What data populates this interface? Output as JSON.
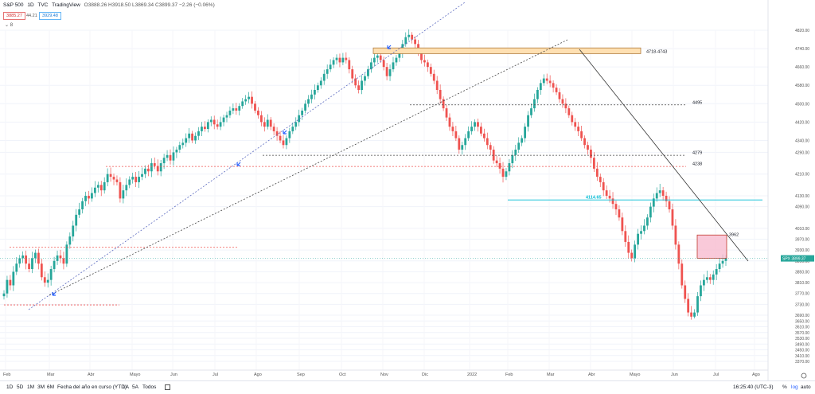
{
  "header": {
    "symbol": "S&P 500",
    "interval": "1D",
    "exchange": "TVC",
    "source": "TradingView",
    "ohlc": "O3888.26 H3918.50 L3869.34 C3899.37 −2.26 (−0.06%)",
    "sell_price": "3885.27",
    "spread": "44.21",
    "buy_price": "3929.48",
    "indicator_toggle": "⌄ 8"
  },
  "footer": {
    "timeframes": [
      "1D",
      "5D",
      "1M",
      "3M",
      "6M",
      "Fecha del año en curso (YTD)",
      "1A",
      "5A",
      "Todos"
    ],
    "time": "16:25:40 (UTC-3)",
    "percent": "%",
    "log": "log",
    "auto": "auto"
  },
  "colors": {
    "up": "#26a69a",
    "down": "#ef5350",
    "accent": "#2962ff",
    "level_line": "#00bcd4",
    "supply_zone": "#ffe0b2",
    "resistance_zone": "#f8bbd0"
  },
  "chart_data": {
    "type": "candlestick",
    "title": "S&P 500 · 1D · TVC",
    "y_axis": {
      "ticks": [
        4820,
        4740,
        4660,
        4580,
        4500,
        4420,
        4340,
        4290,
        4210,
        4130,
        4090,
        4010,
        3970,
        3930,
        3890,
        3850,
        3810,
        3770,
        3730,
        3690,
        3650,
        3610,
        3570,
        3530,
        3490,
        3450,
        3410,
        3370
      ],
      "ylim": [
        3370,
        4850
      ]
    },
    "x_axis": {
      "ticks": [
        "Feb",
        "Mar",
        "Abr",
        "Mayo",
        "Jun",
        "Jul",
        "Ago",
        "Sep",
        "Oct",
        "Nov",
        "Dic",
        "2022",
        "Feb",
        "Mar",
        "Abr",
        "Mayo",
        "Jun",
        "Jul",
        "Ago"
      ]
    },
    "price_label": {
      "symbol": "SPX",
      "value": 3899.37
    },
    "closes": [
      3770,
      3820,
      3800,
      3850,
      3880,
      3900,
      3910,
      3880,
      3860,
      3900,
      3920,
      3880,
      3830,
      3810,
      3820,
      3860,
      3890,
      3910,
      3900,
      3880,
      3950,
      3980,
      4020,
      4060,
      4080,
      4110,
      4130,
      4120,
      4140,
      4160,
      4170,
      4150,
      4180,
      4210,
      4200,
      4190,
      4180,
      4120,
      4150,
      4170,
      4190,
      4200,
      4180,
      4200,
      4210,
      4230,
      4220,
      4250,
      4240,
      4220,
      4250,
      4270,
      4280,
      4260,
      4290,
      4300,
      4320,
      4330,
      4350,
      4370,
      4340,
      4360,
      4380,
      4400,
      4390,
      4420,
      4430,
      4410,
      4400,
      4420,
      4440,
      4450,
      4470,
      4480,
      4470,
      4490,
      4510,
      4520,
      4530,
      4500,
      4470,
      4450,
      4420,
      4400,
      4430,
      4400,
      4380,
      4360,
      4340,
      4320,
      4350,
      4380,
      4400,
      4420,
      4450,
      4470,
      4500,
      4520,
      4540,
      4560,
      4580,
      4600,
      4630,
      4650,
      4670,
      4690,
      4700,
      4680,
      4700,
      4690,
      4650,
      4610,
      4580,
      4560,
      4600,
      4620,
      4650,
      4680,
      4700,
      4710,
      4690,
      4660,
      4620,
      4650,
      4680,
      4700,
      4720,
      4760,
      4790,
      4800,
      4780,
      4760,
      4720,
      4690,
      4680,
      4660,
      4630,
      4600,
      4560,
      4520,
      4480,
      4440,
      4400,
      4380,
      4350,
      4300,
      4320,
      4350,
      4380,
      4400,
      4420,
      4400,
      4370,
      4350,
      4320,
      4300,
      4260,
      4250,
      4230,
      4200,
      4220,
      4250,
      4280,
      4300,
      4330,
      4350,
      4400,
      4450,
      4480,
      4520,
      4560,
      4590,
      4610,
      4600,
      4590,
      4570,
      4550,
      4520,
      4500,
      4480,
      4450,
      4420,
      4400,
      4380,
      4350,
      4320,
      4300,
      4270,
      4230,
      4200,
      4180,
      4150,
      4130,
      4120,
      4100,
      4080,
      4050,
      4000,
      3960,
      3920,
      3900,
      3950,
      3990,
      4000,
      4020,
      4050,
      4090,
      4120,
      4140,
      4150,
      4130,
      4110,
      4080,
      4020,
      3950,
      3880,
      3800,
      3750,
      3700,
      3680,
      3700,
      3760,
      3800,
      3820,
      3830,
      3820,
      3840,
      3860,
      3880,
      3890,
      3899.37
    ],
    "candle_x_range": [
      5,
      912
    ],
    "annotations": [
      {
        "type": "zone",
        "label": "4718-4743",
        "y_low": 4718,
        "y_high": 4743
      },
      {
        "type": "hline",
        "label": "4495",
        "y": 4495,
        "style": "dashed"
      },
      {
        "type": "hline",
        "label": "4279",
        "y": 4279,
        "style": "dashed"
      },
      {
        "type": "hline",
        "label": "4238",
        "y": 4238,
        "style": "dashed-red"
      },
      {
        "type": "hline",
        "label": "4114.65",
        "y": 4114.65,
        "style": "solid-cyan"
      },
      {
        "type": "zone",
        "label": "3962",
        "y_low": 3900,
        "y_high": 3962
      },
      {
        "type": "hline",
        "label": "",
        "y": 3940,
        "style": "dashed-red"
      },
      {
        "type": "hline",
        "label": "",
        "y": 3728,
        "style": "dashed-red"
      }
    ]
  }
}
